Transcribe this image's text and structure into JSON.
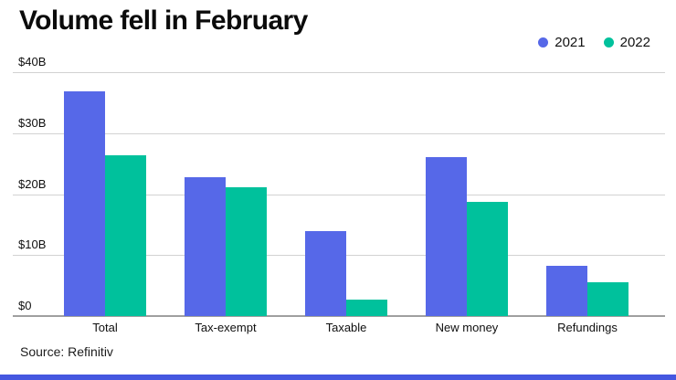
{
  "title": "Volume fell in February",
  "source": "Source: Refinitiv",
  "legend": [
    {
      "label": "2021",
      "color": "#5668e8"
    },
    {
      "label": "2022",
      "color": "#00c19c"
    }
  ],
  "colors": {
    "series_2021": "#5668e8",
    "series_2022": "#00c19c",
    "gridline": "#d2d2d2",
    "axis_line": "#9f9f9f",
    "accent_bar": "#4557e0",
    "text": "#0b0b0b"
  },
  "chart_data": {
    "type": "bar",
    "title": "Volume fell in February",
    "unit": "USD billions",
    "categories": [
      "Total",
      "Tax-exempt",
      "Taxable",
      "New money",
      "Refundings"
    ],
    "series": [
      {
        "name": "2021",
        "color": "#5668e8",
        "values": [
          36.9,
          22.8,
          13.9,
          26.1,
          8.3
        ]
      },
      {
        "name": "2022",
        "color": "#00c19c",
        "values": [
          26.4,
          21.1,
          2.7,
          18.7,
          5.5
        ]
      }
    ],
    "xlabel": "",
    "ylabel": "",
    "ylim": [
      0,
      40
    ],
    "yticks": [
      0,
      10,
      20,
      30,
      40
    ],
    "ytick_labels": [
      "$0",
      "$10B",
      "$20B",
      "$30B",
      "$40B"
    ],
    "grid": true,
    "legend_position": "top-right",
    "source_note": "Source: Refinitiv"
  }
}
